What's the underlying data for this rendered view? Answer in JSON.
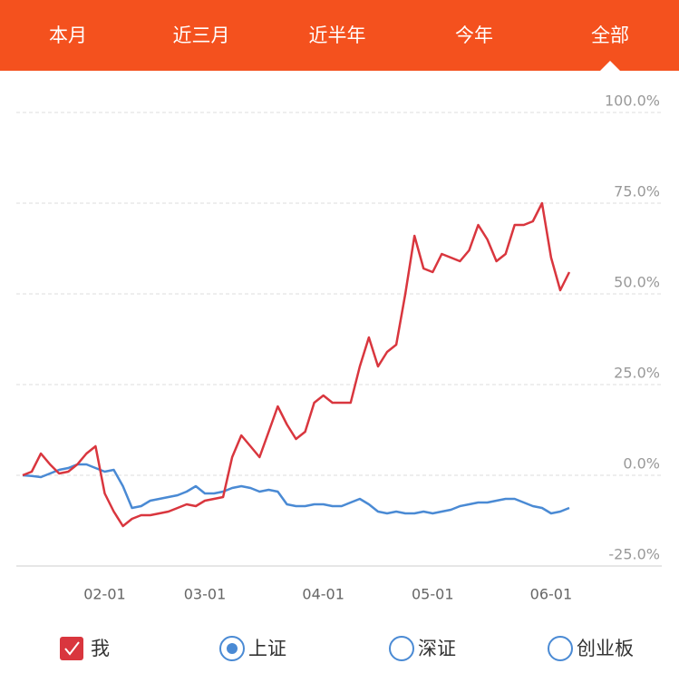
{
  "tabs": [
    "本月",
    "近三月",
    "近半年",
    "今年",
    "全部"
  ],
  "selected_tab": 4,
  "chart_data": {
    "type": "line",
    "categories": [
      null,
      null,
      null,
      null,
      null,
      null,
      null,
      null,
      null,
      "02-01",
      null,
      null,
      null,
      null,
      null,
      null,
      null,
      null,
      null,
      null,
      "03-01",
      null,
      null,
      null,
      null,
      null,
      null,
      null,
      null,
      null,
      null,
      null,
      null,
      "04-01",
      null,
      null,
      null,
      null,
      null,
      null,
      null,
      null,
      null,
      null,
      null,
      "05-01",
      null,
      null,
      null,
      null,
      null,
      null,
      null,
      null,
      null,
      null,
      null,
      null,
      "06-01",
      null,
      null
    ],
    "series": [
      {
        "name": "我",
        "color": "#d9363e",
        "values": [
          0,
          1,
          6,
          3,
          0.5,
          1,
          3,
          6,
          8,
          -5,
          -10,
          -14,
          -12,
          -11,
          -11,
          -10.5,
          -10,
          -9,
          -8,
          -8.5,
          -7,
          -6.5,
          -6,
          5,
          11,
          8,
          5,
          12,
          19,
          14,
          10,
          12,
          20,
          22,
          20,
          20,
          20,
          30,
          38,
          30,
          34,
          36,
          50,
          66,
          57,
          56,
          61,
          60,
          59,
          62,
          69,
          65,
          59,
          61,
          69,
          69,
          70,
          75,
          60,
          51,
          56
        ]
      },
      {
        "name": "上证",
        "color": "#4a8ad4",
        "values": [
          0,
          -0.2,
          -0.5,
          0.5,
          1.5,
          2,
          3,
          3,
          2,
          1,
          1.5,
          -3,
          -9,
          -8.5,
          -7,
          -6.5,
          -6,
          -5.5,
          -4.5,
          -3,
          -5,
          -5,
          -4.5,
          -3.5,
          -3,
          -3.5,
          -4.5,
          -4,
          -4.5,
          -8,
          -8.5,
          -8.5,
          -8,
          -8,
          -8.5,
          -8.5,
          -7.5,
          -6.5,
          -8,
          -10,
          -10.5,
          -10,
          -10.5,
          -10.5,
          -10,
          -10.5,
          -10,
          -9.5,
          -8.5,
          -8,
          -7.5,
          -7.5,
          -7,
          -6.5,
          -6.5,
          -7.5,
          -8.5,
          -9,
          -10.5,
          -10,
          -9
        ]
      }
    ],
    "hidden_series": [
      "深证",
      "创业板"
    ],
    "ylim": [
      -25,
      100
    ],
    "yticks": [
      {
        "value": -25,
        "label": "-25.0%"
      },
      {
        "value": 0,
        "label": "0.0%"
      },
      {
        "value": 25,
        "label": "25.0%"
      },
      {
        "value": 50,
        "label": "50.0%"
      },
      {
        "value": 75,
        "label": "75.0%"
      },
      {
        "value": 100,
        "label": "100.0%"
      }
    ],
    "grid": true
  }
}
